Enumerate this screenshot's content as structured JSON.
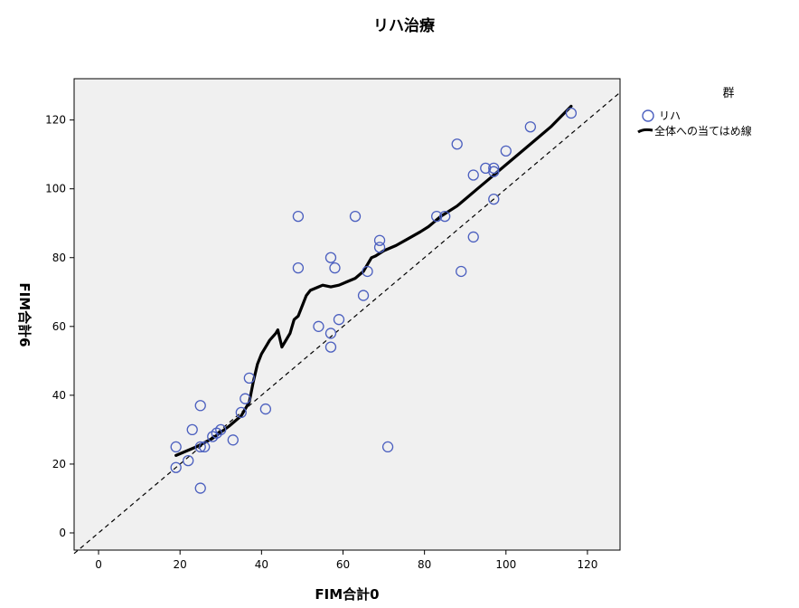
{
  "chart_data": {
    "type": "scatter",
    "title": "リハ治療",
    "xlabel": "FIM合計0",
    "ylabel": "FIM合計6",
    "xlim": [
      -6,
      128
    ],
    "ylim": [
      -5,
      132
    ],
    "xticks": [
      "0",
      "20",
      "40",
      "60",
      "80",
      "100",
      "120"
    ],
    "yticks": [
      "0",
      "20",
      "40",
      "60",
      "80",
      "100",
      "120"
    ],
    "grid": false,
    "background": "#f0f0f0",
    "legend": {
      "title": "群",
      "placement": "right",
      "entries": [
        "リハ",
        "全体への当てはめ線"
      ]
    },
    "series": [
      {
        "name": "リハ",
        "marker": "circle",
        "color": "#4b5fbf",
        "points": [
          [
            19,
            25
          ],
          [
            19,
            19
          ],
          [
            22,
            21
          ],
          [
            23,
            30
          ],
          [
            25,
            37
          ],
          [
            25,
            13
          ],
          [
            25,
            25
          ],
          [
            26,
            25
          ],
          [
            28,
            28
          ],
          [
            29,
            29
          ],
          [
            30,
            30
          ],
          [
            33,
            27
          ],
          [
            35,
            35
          ],
          [
            36,
            39
          ],
          [
            37,
            45
          ],
          [
            41,
            36
          ],
          [
            49,
            92
          ],
          [
            49,
            77
          ],
          [
            54,
            60
          ],
          [
            57,
            58
          ],
          [
            57,
            54
          ],
          [
            57,
            80
          ],
          [
            58,
            77
          ],
          [
            59,
            62
          ],
          [
            63,
            92
          ],
          [
            65,
            69
          ],
          [
            66,
            76
          ],
          [
            69,
            83
          ],
          [
            69,
            85
          ],
          [
            71,
            25
          ],
          [
            83,
            92
          ],
          [
            85,
            92
          ],
          [
            88,
            113
          ],
          [
            89,
            76
          ],
          [
            92,
            86
          ],
          [
            92,
            104
          ],
          [
            95,
            106
          ],
          [
            97,
            106
          ],
          [
            97,
            105
          ],
          [
            97,
            97
          ],
          [
            100,
            111
          ],
          [
            106,
            118
          ],
          [
            116,
            122
          ]
        ]
      },
      {
        "name": "全体への当てはめ線",
        "type": "line",
        "color": "#000000",
        "points": [
          [
            19,
            22.5
          ],
          [
            24,
            25
          ],
          [
            28,
            27.5
          ],
          [
            32,
            31
          ],
          [
            35,
            34
          ],
          [
            37,
            38
          ],
          [
            38,
            44
          ],
          [
            39,
            49
          ],
          [
            40,
            52
          ],
          [
            41,
            54
          ],
          [
            42,
            56
          ],
          [
            43.5,
            58
          ],
          [
            44,
            59
          ],
          [
            45,
            54
          ],
          [
            46,
            56
          ],
          [
            47,
            58
          ],
          [
            48,
            62
          ],
          [
            49,
            63
          ],
          [
            50,
            66
          ],
          [
            51,
            69
          ],
          [
            52,
            70.5
          ],
          [
            54,
            71.5
          ],
          [
            55,
            72
          ],
          [
            57,
            71.5
          ],
          [
            59,
            72
          ],
          [
            61,
            73
          ],
          [
            63,
            74
          ],
          [
            65,
            76
          ],
          [
            66,
            78
          ],
          [
            67,
            80
          ],
          [
            68,
            80.5
          ],
          [
            70,
            82
          ],
          [
            73,
            83.5
          ],
          [
            76,
            85.5
          ],
          [
            79,
            87.5
          ],
          [
            81,
            89
          ],
          [
            82,
            90
          ],
          [
            83,
            91
          ],
          [
            84,
            92
          ],
          [
            88,
            95
          ],
          [
            90,
            97
          ],
          [
            93,
            100
          ],
          [
            96,
            103
          ],
          [
            99,
            106
          ],
          [
            102,
            109
          ],
          [
            105,
            112
          ],
          [
            108,
            115
          ],
          [
            111,
            118
          ],
          [
            116,
            124
          ]
        ]
      },
      {
        "name": "",
        "type": "reference-line",
        "style": "dashed",
        "color": "#000000",
        "points": [
          [
            -6,
            -6
          ],
          [
            128,
            128
          ]
        ]
      }
    ]
  }
}
